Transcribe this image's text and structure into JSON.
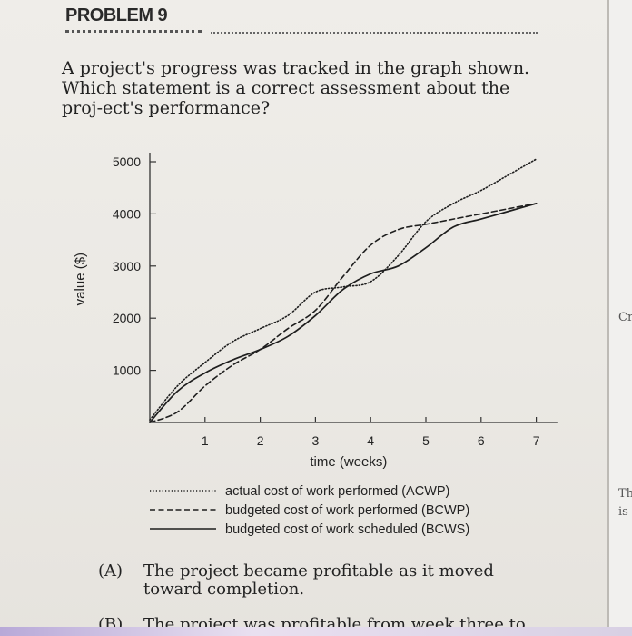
{
  "problem": {
    "label": "PROBLEM 9",
    "prompt": "A project's progress was tracked in the graph shown. Which statement is a correct assessment about the proj-ect's performance?"
  },
  "chart_data": {
    "type": "line",
    "xlabel": "time (weeks)",
    "ylabel": "value ($)",
    "xticks": [
      1,
      2,
      3,
      4,
      5,
      6,
      7
    ],
    "yticks": [
      1000,
      2000,
      3000,
      4000,
      5000
    ],
    "xlim": [
      0,
      7.3
    ],
    "ylim": [
      0,
      5000
    ],
    "series": [
      {
        "name": "actual cost of work performed (ACWP)",
        "style": "dotted",
        "x": [
          0,
          0.5,
          1,
          1.5,
          2,
          2.5,
          3,
          3.5,
          4,
          4.5,
          5,
          5.5,
          6,
          6.5,
          7
        ],
        "y": [
          50,
          700,
          1150,
          1550,
          1800,
          2050,
          2500,
          2600,
          2700,
          3200,
          3850,
          4200,
          4450,
          4750,
          5050
        ]
      },
      {
        "name": "budgeted cost of work performed (BCWP)",
        "style": "dashed",
        "x": [
          0,
          0.5,
          1,
          1.5,
          2,
          2.5,
          3,
          3.5,
          4,
          4.5,
          5,
          5.5,
          6,
          6.5,
          7
        ],
        "y": [
          0,
          200,
          700,
          1100,
          1400,
          1800,
          2150,
          2800,
          3400,
          3700,
          3800,
          3900,
          4000,
          4100,
          4200
        ]
      },
      {
        "name": "budgeted cost of work scheduled (BCWS)",
        "style": "solid",
        "x": [
          0,
          0.5,
          1,
          1.5,
          2,
          2.5,
          3,
          3.5,
          4,
          4.5,
          5,
          5.5,
          6,
          6.5,
          7
        ],
        "y": [
          0,
          600,
          950,
          1200,
          1400,
          1650,
          2050,
          2550,
          2850,
          3000,
          3350,
          3750,
          3900,
          4050,
          4200
        ]
      }
    ]
  },
  "options": [
    {
      "letter": "(A)",
      "text": "The project became profitable as it moved toward completion."
    },
    {
      "letter": "(B)",
      "text": "The project was profitable from week three to"
    }
  ],
  "right_page": [
    "Cr",
    "The",
    "is m"
  ]
}
